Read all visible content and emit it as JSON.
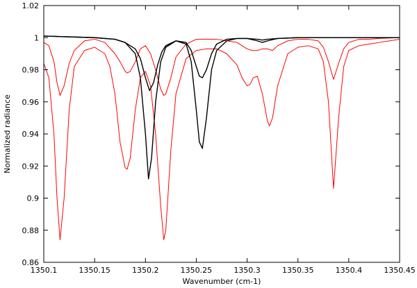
{
  "chart_data": {
    "type": "line",
    "title": "",
    "xlabel": "Wavenumber (cm-1)",
    "ylabel": "Normalized radiance",
    "xlim": [
      1350.1,
      1350.45
    ],
    "ylim": [
      0.86,
      1.02
    ],
    "grid": false,
    "x_ticks": [
      1350.1,
      1350.15,
      1350.2,
      1350.25,
      1350.3,
      1350.35,
      1350.4,
      1350.45
    ],
    "x_tick_labels": [
      "1350.1",
      "1350.15",
      "1350.2",
      "1350.25",
      "1350.3",
      "1350.35",
      "1350.4",
      "1350.45"
    ],
    "y_ticks": [
      0.86,
      0.88,
      0.9,
      0.92,
      0.94,
      0.96,
      0.98,
      1.0,
      1.02
    ],
    "y_tick_labels": [
      "0.86",
      "0.88",
      "0.9",
      "0.92",
      "0.94",
      "0.96",
      "0.98",
      "1",
      "1.02"
    ],
    "series": [
      {
        "color": "#ff0000",
        "x": [
          1350.1,
          1350.105,
          1350.11,
          1350.113,
          1350.116,
          1350.12,
          1350.125,
          1350.13,
          1350.14,
          1350.15,
          1350.16,
          1350.165,
          1350.17,
          1350.175,
          1350.18,
          1350.182,
          1350.185,
          1350.19,
          1350.195,
          1350.2,
          1350.205,
          1350.21,
          1350.215,
          1350.218,
          1350.22,
          1350.225,
          1350.23,
          1350.24,
          1350.25,
          1350.26,
          1350.27,
          1350.28,
          1350.29,
          1350.295,
          1350.3,
          1350.303,
          1350.306,
          1350.31,
          1350.315,
          1350.32,
          1350.322,
          1350.325,
          1350.33,
          1350.34,
          1350.35,
          1350.36,
          1350.37,
          1350.375,
          1350.38,
          1350.385,
          1350.39,
          1350.395,
          1350.4,
          1350.41,
          1350.42,
          1350.43,
          1350.44,
          1350.45
        ],
        "y": [
          0.984,
          0.975,
          0.94,
          0.9,
          0.874,
          0.9,
          0.955,
          0.982,
          0.992,
          0.994,
          0.99,
          0.982,
          0.965,
          0.935,
          0.919,
          0.918,
          0.925,
          0.955,
          0.975,
          0.979,
          0.97,
          0.94,
          0.895,
          0.874,
          0.88,
          0.93,
          0.965,
          0.987,
          0.992,
          0.993,
          0.993,
          0.99,
          0.983,
          0.975,
          0.97,
          0.971,
          0.975,
          0.976,
          0.965,
          0.948,
          0.945,
          0.95,
          0.97,
          0.99,
          0.994,
          0.995,
          0.993,
          0.985,
          0.96,
          0.906,
          0.95,
          0.982,
          0.992,
          0.995,
          0.996,
          0.997,
          0.998,
          0.999
        ]
      },
      {
        "color": "#ff0000",
        "x": [
          1350.1,
          1350.105,
          1350.11,
          1350.113,
          1350.116,
          1350.12,
          1350.125,
          1350.13,
          1350.14,
          1350.15,
          1350.16,
          1350.17,
          1350.175,
          1350.18,
          1350.182,
          1350.185,
          1350.19,
          1350.195,
          1350.2,
          1350.205,
          1350.21,
          1350.215,
          1350.218,
          1350.22,
          1350.225,
          1350.23,
          1350.24,
          1350.25,
          1350.26,
          1350.27,
          1350.28,
          1350.29,
          1350.295,
          1350.3,
          1350.305,
          1350.31,
          1350.315,
          1350.32,
          1350.325,
          1350.33,
          1350.34,
          1350.35,
          1350.36,
          1350.37,
          1350.375,
          1350.38,
          1350.385,
          1350.39,
          1350.395,
          1350.4,
          1350.41,
          1350.42,
          1350.43,
          1350.44,
          1350.45
        ],
        "y": [
          0.997,
          0.995,
          0.985,
          0.972,
          0.964,
          0.97,
          0.984,
          0.992,
          0.998,
          0.999,
          0.997,
          0.99,
          0.985,
          0.979,
          0.978,
          0.979,
          0.985,
          0.993,
          0.995,
          0.99,
          0.98,
          0.968,
          0.964,
          0.965,
          0.975,
          0.988,
          0.996,
          0.999,
          0.999,
          0.999,
          0.998,
          0.997,
          0.995,
          0.993,
          0.992,
          0.992,
          0.993,
          0.993,
          0.992,
          0.995,
          0.998,
          0.999,
          0.999,
          0.998,
          0.994,
          0.985,
          0.974,
          0.984,
          0.993,
          0.997,
          0.999,
          0.999,
          0.9995,
          0.9998,
          1.0
        ]
      },
      {
        "color": "#000000",
        "x": [
          1350.1,
          1350.15,
          1350.17,
          1350.18,
          1350.19,
          1350.195,
          1350.2,
          1350.203,
          1350.206,
          1350.21,
          1350.215,
          1350.22,
          1350.23,
          1350.24,
          1350.245,
          1350.25,
          1350.253,
          1350.256,
          1350.26,
          1350.265,
          1350.27,
          1350.28,
          1350.29,
          1350.3,
          1350.31,
          1350.315,
          1350.32,
          1350.33,
          1350.35,
          1350.4,
          1350.45
        ],
        "y": [
          1.001,
          1.0,
          0.999,
          0.997,
          0.99,
          0.975,
          0.94,
          0.912,
          0.925,
          0.96,
          0.985,
          0.994,
          0.998,
          0.996,
          0.985,
          0.955,
          0.935,
          0.931,
          0.95,
          0.98,
          0.992,
          0.998,
          0.9995,
          0.9995,
          0.998,
          0.997,
          0.998,
          0.9995,
          1.0,
          1.0,
          1.0
        ]
      },
      {
        "color": "#000000",
        "x": [
          1350.1,
          1350.15,
          1350.17,
          1350.18,
          1350.19,
          1350.195,
          1350.2,
          1350.204,
          1350.208,
          1350.212,
          1350.216,
          1350.22,
          1350.23,
          1350.24,
          1350.245,
          1350.25,
          1350.253,
          1350.256,
          1350.26,
          1350.265,
          1350.27,
          1350.28,
          1350.29,
          1350.3,
          1350.31,
          1350.315,
          1350.32,
          1350.33,
          1350.35,
          1350.4,
          1350.45
        ],
        "y": [
          1.001,
          1.0,
          0.999,
          0.997,
          0.993,
          0.987,
          0.975,
          0.967,
          0.972,
          0.983,
          0.991,
          0.995,
          0.998,
          0.997,
          0.992,
          0.982,
          0.976,
          0.975,
          0.98,
          0.99,
          0.996,
          0.999,
          0.9995,
          0.9995,
          0.999,
          0.9985,
          0.999,
          0.9995,
          1.0,
          1.0,
          1.0
        ]
      }
    ]
  }
}
